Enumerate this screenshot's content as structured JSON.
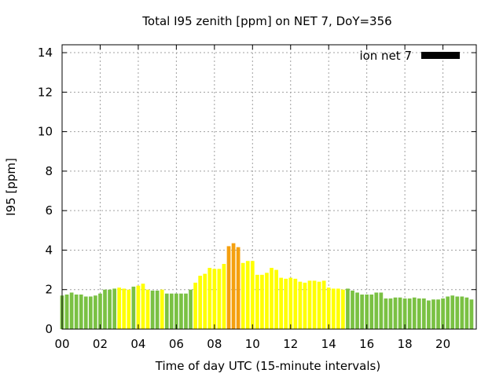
{
  "chart_data": {
    "type": "bar",
    "title": "Total I95 zenith [ppm] on NET 7, DoY=356",
    "xlabel": "Time of day UTC (15-minute intervals)",
    "ylabel": "I95 [ppm]",
    "xlim": [
      0,
      21.75
    ],
    "ylim": [
      0,
      14.4
    ],
    "x_ticks": [
      "00",
      "02",
      "04",
      "06",
      "08",
      "10",
      "12",
      "14",
      "16",
      "18",
      "20"
    ],
    "y_ticks": [
      "0",
      "2",
      "4",
      "6",
      "8",
      "10",
      "12",
      "14"
    ],
    "grid": true,
    "legend": {
      "label": "ion net 7",
      "color": "#000000",
      "position": "top-right"
    },
    "color_scale": {
      "green": "#7ac143",
      "yellow": "#ffff00",
      "orange": "#f5a00f"
    },
    "bar_interval_hours": 0.25,
    "values": [
      1.7,
      1.75,
      1.85,
      1.75,
      1.75,
      1.65,
      1.65,
      1.7,
      1.8,
      2.0,
      2.0,
      2.05,
      2.1,
      2.05,
      2.0,
      2.15,
      2.2,
      2.3,
      2.0,
      1.95,
      1.95,
      2.0,
      1.8,
      1.8,
      1.8,
      1.8,
      1.8,
      2.0,
      2.35,
      2.7,
      2.8,
      3.1,
      3.05,
      3.05,
      3.3,
      4.2,
      4.35,
      4.15,
      3.35,
      3.45,
      3.45,
      2.75,
      2.75,
      2.85,
      3.1,
      3.0,
      2.6,
      2.55,
      2.6,
      2.55,
      2.4,
      2.35,
      2.45,
      2.45,
      2.4,
      2.45,
      2.1,
      2.05,
      2.05,
      2.0,
      2.05,
      1.95,
      1.85,
      1.75,
      1.75,
      1.75,
      1.85,
      1.85,
      1.55,
      1.55,
      1.6,
      1.6,
      1.55,
      1.55,
      1.6,
      1.55,
      1.55,
      1.45,
      1.5,
      1.5,
      1.55,
      1.65,
      1.7,
      1.65,
      1.65,
      1.6,
      1.5
    ],
    "colors": [
      "green",
      "green",
      "green",
      "green",
      "green",
      "green",
      "green",
      "green",
      "green",
      "green",
      "green",
      "green",
      "yellow",
      "yellow",
      "yellow",
      "green",
      "yellow",
      "yellow",
      "yellow",
      "green",
      "green",
      "yellow",
      "green",
      "green",
      "green",
      "green",
      "green",
      "green",
      "yellow",
      "yellow",
      "yellow",
      "yellow",
      "yellow",
      "yellow",
      "yellow",
      "orange",
      "orange",
      "orange",
      "yellow",
      "yellow",
      "yellow",
      "yellow",
      "yellow",
      "yellow",
      "yellow",
      "yellow",
      "yellow",
      "yellow",
      "yellow",
      "yellow",
      "yellow",
      "yellow",
      "yellow",
      "yellow",
      "yellow",
      "yellow",
      "yellow",
      "yellow",
      "yellow",
      "yellow",
      "green",
      "green",
      "green",
      "green",
      "green",
      "green",
      "green",
      "green",
      "green",
      "green",
      "green",
      "green",
      "green",
      "green",
      "green",
      "green",
      "green",
      "green",
      "green",
      "green",
      "green",
      "green",
      "green",
      "green",
      "green",
      "green",
      "green"
    ]
  }
}
